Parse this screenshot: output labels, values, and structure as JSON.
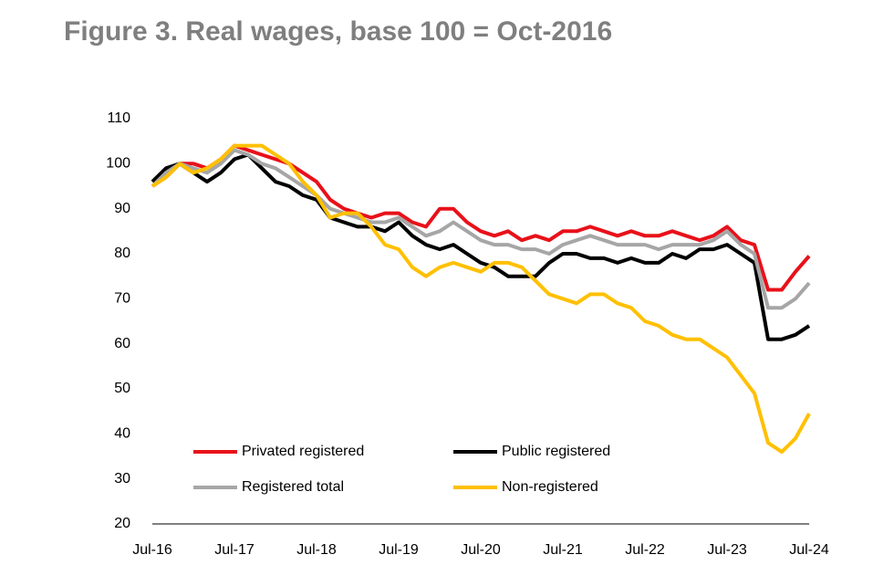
{
  "chart_data": {
    "type": "line",
    "title": "Figure 3.   Real wages, base 100 = Oct-2016",
    "categories": [
      "Jul-16",
      null,
      null,
      null,
      null,
      null,
      "Jul-17",
      null,
      null,
      null,
      null,
      null,
      "Jul-18",
      null,
      null,
      null,
      null,
      null,
      "Jul-19",
      null,
      null,
      null,
      null,
      null,
      "Jul-20",
      null,
      null,
      null,
      null,
      null,
      "Jul-21",
      null,
      null,
      null,
      null,
      null,
      "Jul-22",
      null,
      null,
      null,
      null,
      null,
      "Jul-23",
      null,
      null,
      null,
      null,
      null,
      "Jul-24"
    ],
    "series": [
      {
        "name": "Privated registered",
        "color": "#e8111a",
        "values": [
          95,
          97,
          100,
          100,
          99,
          101,
          104,
          103,
          102,
          101,
          100,
          98,
          96,
          92,
          90,
          89,
          88,
          89,
          89,
          87,
          86,
          90,
          90,
          87,
          85,
          84,
          85,
          83,
          84,
          83,
          85,
          85,
          86,
          85,
          84,
          85,
          84,
          84,
          85,
          84,
          83,
          84,
          86,
          83,
          82,
          72,
          72,
          76,
          79.5
        ]
      },
      {
        "name": "Public registered",
        "color": "#000000",
        "values": [
          96,
          99,
          100,
          98,
          96,
          98,
          101,
          102,
          99,
          96,
          95,
          93,
          92,
          88,
          87,
          86,
          86,
          85,
          87,
          84,
          82,
          81,
          82,
          80,
          78,
          77,
          75,
          75,
          75,
          78,
          80,
          80,
          79,
          79,
          78,
          79,
          78,
          78,
          80,
          79,
          81,
          81,
          82,
          80,
          78,
          61,
          61,
          62,
          64
        ]
      },
      {
        "name": "Registered total",
        "color": "#a6a6a6",
        "values": [
          95,
          98,
          100,
          99,
          98,
          100,
          103,
          102,
          100,
          99,
          97,
          95,
          93,
          90,
          89,
          88,
          87,
          87,
          88,
          86,
          84,
          85,
          87,
          85,
          83,
          82,
          82,
          81,
          81,
          80,
          82,
          83,
          84,
          83,
          82,
          82,
          82,
          81,
          82,
          82,
          82,
          83,
          85,
          82,
          80,
          68,
          68,
          70,
          73.5
        ]
      },
      {
        "name": "Non-registered",
        "color": "#ffc000",
        "values": [
          95,
          97,
          100,
          98,
          99,
          101,
          104,
          104,
          104,
          102,
          100,
          96,
          93,
          88,
          89,
          89,
          86,
          82,
          81,
          77,
          75,
          77,
          78,
          77,
          76,
          78,
          78,
          77,
          74,
          71,
          70,
          69,
          71,
          71,
          69,
          68,
          65,
          64,
          62,
          61,
          61,
          59,
          57,
          53,
          49,
          38,
          36,
          39,
          44.5
        ]
      }
    ],
    "ylim": [
      20,
      110
    ],
    "yticks": [
      20,
      30,
      40,
      50,
      60,
      70,
      80,
      90,
      100,
      110
    ],
    "grid": false
  }
}
